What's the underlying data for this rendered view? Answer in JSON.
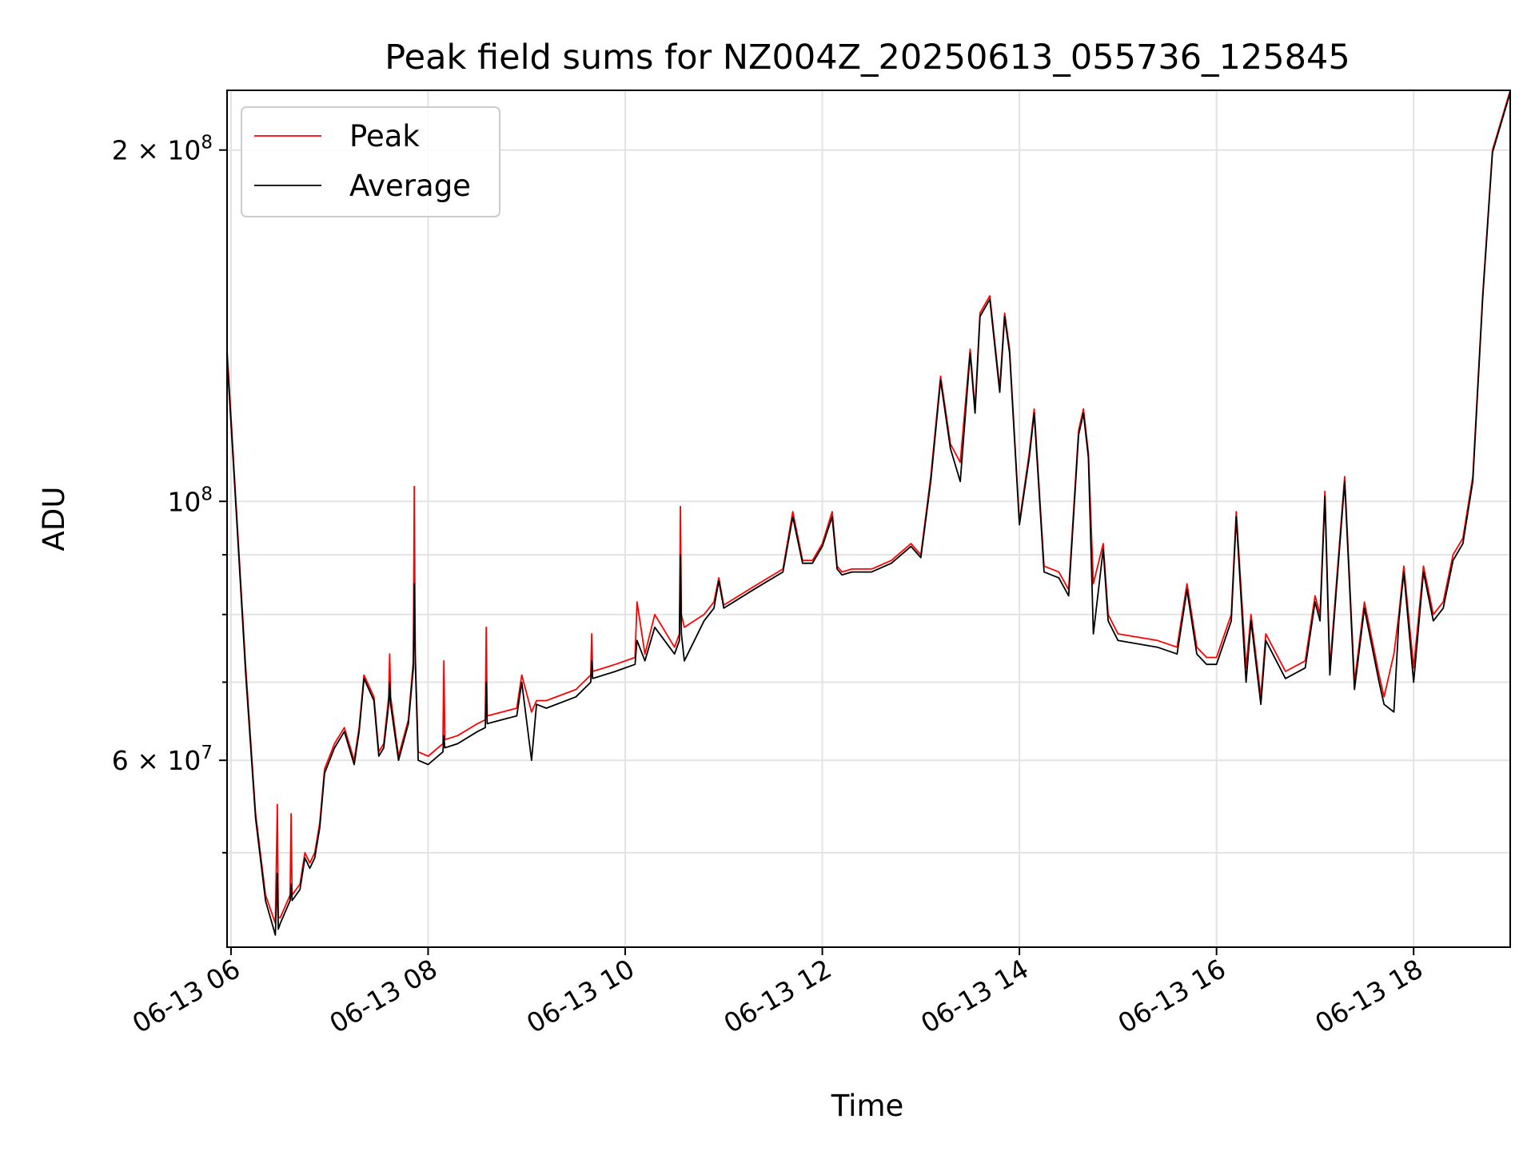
{
  "chart_data": {
    "type": "line",
    "title": "Peak field sums for NZ004Z_20250613_055736_125845",
    "xlabel": "Time",
    "ylabel": "ADU",
    "yscale": "log",
    "grid": true,
    "legend_position": "top-left",
    "x_ticks": [
      "06-13 06",
      "06-13 08",
      "06-13 10",
      "06-13 12",
      "06-13 14",
      "06-13 16",
      "06-13 18"
    ],
    "y_tick_labels": [
      "2 × 10^8",
      "10^8",
      "6 × 10^7"
    ],
    "colors": {
      "Peak": "#ff0000",
      "Average": "#000000"
    },
    "x_unit": "hours (06-13)",
    "xlim": [
      5.96,
      18.98
    ],
    "ylim": [
      41500000,
      225000000
    ],
    "series": [
      {
        "name": "Peak",
        "x": [
          5.96,
          6.05,
          6.15,
          6.25,
          6.35,
          6.45,
          6.47,
          6.48,
          6.5,
          6.6,
          6.61,
          6.62,
          6.7,
          6.75,
          6.8,
          6.85,
          6.9,
          6.95,
          7.05,
          7.15,
          7.25,
          7.3,
          7.35,
          7.45,
          7.5,
          7.55,
          7.6,
          7.61,
          7.62,
          7.7,
          7.8,
          7.85,
          7.86,
          7.87,
          7.9,
          8.0,
          8.15,
          8.16,
          8.17,
          8.3,
          8.5,
          8.58,
          8.59,
          8.6,
          8.9,
          8.95,
          9.05,
          9.1,
          9.2,
          9.5,
          9.65,
          9.66,
          9.67,
          9.9,
          10.1,
          10.12,
          10.2,
          10.3,
          10.5,
          10.55,
          10.56,
          10.57,
          10.6,
          10.8,
          10.9,
          10.95,
          11.0,
          11.3,
          11.6,
          11.7,
          11.8,
          11.9,
          12.0,
          12.1,
          12.15,
          12.2,
          12.3,
          12.5,
          12.7,
          12.9,
          13.0,
          13.1,
          13.2,
          13.3,
          13.4,
          13.5,
          13.55,
          13.6,
          13.7,
          13.8,
          13.85,
          13.9,
          14.0,
          14.1,
          14.15,
          14.25,
          14.4,
          14.5,
          14.6,
          14.65,
          14.7,
          14.75,
          14.85,
          14.9,
          15.0,
          15.2,
          15.4,
          15.6,
          15.7,
          15.8,
          15.9,
          16.0,
          16.15,
          16.2,
          16.3,
          16.35,
          16.45,
          16.5,
          16.7,
          16.9,
          17.0,
          17.05,
          17.1,
          17.15,
          17.3,
          17.4,
          17.5,
          17.65,
          17.7,
          17.8,
          17.85,
          17.9,
          18.0,
          18.1,
          18.2,
          18.3,
          18.4,
          18.5,
          18.6,
          18.7,
          18.8,
          18.98
        ],
        "values": [
          135000000,
          100000000,
          72000000,
          54000000,
          46000000,
          43500000,
          55000000,
          44000000,
          44000000,
          46000000,
          54000000,
          46000000,
          47000000,
          50000000,
          49000000,
          50000000,
          53000000,
          59000000,
          62000000,
          64000000,
          60000000,
          64000000,
          71000000,
          68000000,
          61000000,
          62000000,
          68000000,
          74000000,
          68000000,
          60500000,
          65000000,
          73000000,
          103000000,
          74000000,
          61000000,
          60500000,
          62000000,
          73000000,
          62500000,
          63000000,
          64500000,
          65000000,
          78000000,
          65500000,
          66500000,
          71000000,
          66000000,
          67500000,
          67500000,
          69000000,
          71000000,
          77000000,
          71500000,
          72500000,
          73500000,
          82000000,
          74000000,
          80000000,
          75000000,
          77000000,
          99000000,
          80000000,
          78000000,
          80000000,
          82000000,
          86000000,
          81500000,
          84500000,
          87500000,
          98000000,
          89000000,
          89000000,
          92000000,
          98000000,
          88000000,
          87000000,
          87500000,
          87500000,
          89000000,
          92000000,
          90000000,
          105000000,
          128000000,
          112000000,
          108000000,
          135000000,
          120000000,
          145000000,
          150000000,
          125000000,
          145000000,
          135000000,
          96000000,
          110000000,
          120000000,
          88000000,
          87000000,
          84000000,
          115000000,
          120000000,
          110000000,
          85000000,
          92000000,
          80000000,
          77000000,
          76500000,
          76000000,
          75000000,
          85000000,
          75000000,
          73500000,
          73500000,
          80000000,
          98000000,
          72000000,
          80000000,
          68000000,
          77000000,
          71500000,
          73000000,
          83000000,
          80000000,
          102000000,
          72000000,
          105000000,
          70000000,
          82000000,
          71000000,
          68000000,
          74000000,
          80000000,
          88000000,
          72000000,
          88000000,
          80000000,
          82000000,
          90000000,
          93000000,
          105000000,
          150000000,
          200000000,
          225000000
        ]
      },
      {
        "name": "Average",
        "x": [
          5.96,
          6.05,
          6.15,
          6.25,
          6.35,
          6.45,
          6.47,
          6.48,
          6.5,
          6.6,
          6.61,
          6.62,
          6.7,
          6.75,
          6.8,
          6.85,
          6.9,
          6.95,
          7.05,
          7.15,
          7.25,
          7.3,
          7.35,
          7.45,
          7.5,
          7.55,
          7.6,
          7.61,
          7.62,
          7.7,
          7.8,
          7.85,
          7.86,
          7.87,
          7.9,
          8.0,
          8.15,
          8.16,
          8.17,
          8.3,
          8.5,
          8.58,
          8.59,
          8.6,
          8.9,
          8.95,
          9.05,
          9.1,
          9.2,
          9.5,
          9.65,
          9.66,
          9.67,
          9.9,
          10.1,
          10.12,
          10.2,
          10.3,
          10.5,
          10.55,
          10.56,
          10.57,
          10.6,
          10.8,
          10.9,
          10.95,
          11.0,
          11.3,
          11.6,
          11.7,
          11.8,
          11.9,
          12.0,
          12.1,
          12.15,
          12.2,
          12.3,
          12.5,
          12.7,
          12.9,
          13.0,
          13.1,
          13.2,
          13.3,
          13.4,
          13.5,
          13.55,
          13.6,
          13.7,
          13.8,
          13.85,
          13.9,
          14.0,
          14.1,
          14.15,
          14.25,
          14.4,
          14.5,
          14.6,
          14.65,
          14.7,
          14.75,
          14.85,
          14.9,
          15.0,
          15.2,
          15.4,
          15.6,
          15.7,
          15.8,
          15.9,
          16.0,
          16.15,
          16.2,
          16.3,
          16.35,
          16.45,
          16.5,
          16.7,
          16.9,
          17.0,
          17.05,
          17.1,
          17.15,
          17.3,
          17.4,
          17.5,
          17.65,
          17.7,
          17.8,
          17.85,
          17.9,
          18.0,
          18.1,
          18.2,
          18.3,
          18.4,
          18.5,
          18.6,
          18.7,
          18.8,
          18.98
        ],
        "values": [
          133000000,
          99000000,
          71000000,
          53500000,
          45500000,
          42500000,
          48000000,
          43000000,
          43500000,
          45500000,
          47000000,
          45500000,
          46500000,
          49500000,
          48500000,
          49500000,
          52500000,
          58500000,
          61500000,
          63500000,
          59500000,
          63500000,
          70500000,
          67500000,
          60500000,
          61500000,
          67000000,
          70000000,
          67000000,
          60000000,
          64500000,
          72000000,
          85000000,
          73000000,
          60000000,
          59500000,
          61000000,
          63000000,
          61500000,
          62000000,
          63500000,
          64000000,
          70000000,
          64500000,
          65500000,
          70000000,
          60000000,
          67000000,
          66500000,
          68000000,
          70000000,
          73000000,
          70500000,
          71500000,
          72500000,
          76000000,
          73000000,
          78000000,
          74000000,
          76000000,
          90000000,
          77000000,
          73000000,
          79000000,
          81000000,
          85500000,
          81000000,
          84000000,
          87000000,
          97000000,
          88500000,
          88500000,
          91500000,
          97000000,
          87500000,
          86500000,
          87000000,
          87000000,
          88500000,
          91500000,
          89500000,
          104000000,
          127000000,
          111000000,
          104000000,
          134000000,
          119000000,
          144000000,
          149000000,
          124000000,
          144000000,
          134000000,
          95500000,
          109000000,
          119000000,
          87000000,
          86000000,
          83000000,
          114000000,
          119000000,
          109000000,
          77000000,
          91000000,
          79000000,
          76000000,
          75500000,
          75000000,
          74000000,
          84000000,
          74000000,
          72500000,
          72500000,
          79000000,
          97000000,
          70000000,
          79000000,
          67000000,
          76000000,
          70500000,
          72000000,
          82000000,
          79000000,
          101000000,
          71000000,
          104000000,
          69000000,
          81000000,
          70000000,
          67000000,
          66000000,
          79000000,
          87000000,
          70000000,
          87000000,
          79000000,
          81000000,
          89000000,
          92000000,
          104000000,
          149000000,
          199000000,
          224000000
        ]
      }
    ]
  }
}
